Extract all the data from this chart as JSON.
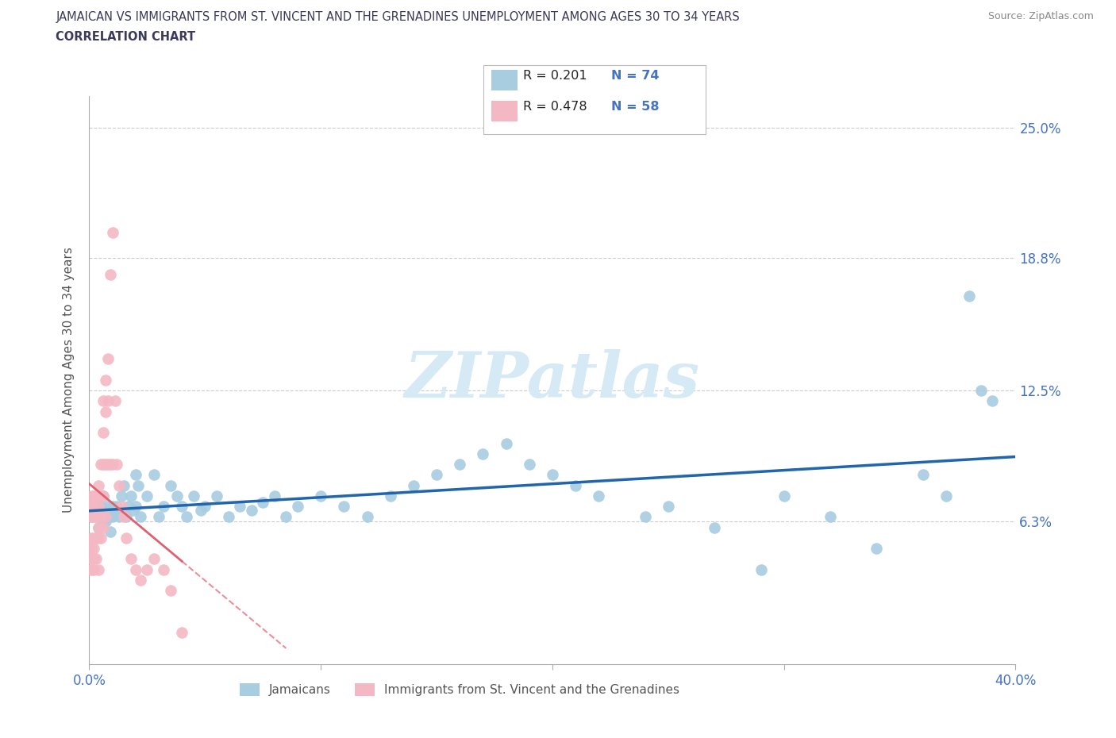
{
  "title_line1": "JAMAICAN VS IMMIGRANTS FROM ST. VINCENT AND THE GRENADINES UNEMPLOYMENT AMONG AGES 30 TO 34 YEARS",
  "title_line2": "CORRELATION CHART",
  "source_text": "Source: ZipAtlas.com",
  "ylabel": "Unemployment Among Ages 30 to 34 years",
  "xlim": [
    0.0,
    0.4
  ],
  "ylim": [
    -0.005,
    0.265
  ],
  "ytick_labels_right": [
    "6.3%",
    "12.5%",
    "18.8%",
    "25.0%"
  ],
  "ytick_vals_right": [
    0.063,
    0.125,
    0.188,
    0.25
  ],
  "legend_r1": "0.201",
  "legend_n1": "74",
  "legend_r2": "0.478",
  "legend_n2": "58",
  "color_blue": "#a8cce0",
  "color_pink": "#f4b8c4",
  "color_trend_blue": "#2166ac",
  "color_trend_pink": "#e06070",
  "watermark_color": "#d6eaf5",
  "title_color": "#3a3a5a",
  "axis_color": "#4472c4",
  "j_x": [
    0.001,
    0.002,
    0.003,
    0.003,
    0.004,
    0.004,
    0.005,
    0.005,
    0.006,
    0.006,
    0.007,
    0.007,
    0.008,
    0.009,
    0.009,
    0.01,
    0.01,
    0.011,
    0.012,
    0.013,
    0.014,
    0.015,
    0.016,
    0.017,
    0.018,
    0.019,
    0.02,
    0.02,
    0.021,
    0.022,
    0.025,
    0.028,
    0.03,
    0.032,
    0.035,
    0.038,
    0.04,
    0.042,
    0.045,
    0.048,
    0.05,
    0.055,
    0.06,
    0.065,
    0.07,
    0.075,
    0.08,
    0.085,
    0.09,
    0.1,
    0.11,
    0.12,
    0.13,
    0.14,
    0.15,
    0.16,
    0.17,
    0.18,
    0.19,
    0.2,
    0.21,
    0.22,
    0.24,
    0.25,
    0.27,
    0.29,
    0.3,
    0.32,
    0.34,
    0.36,
    0.37,
    0.38,
    0.385,
    0.39
  ],
  "j_y": [
    0.065,
    0.07,
    0.072,
    0.065,
    0.068,
    0.06,
    0.065,
    0.07,
    0.075,
    0.062,
    0.068,
    0.063,
    0.07,
    0.065,
    0.058,
    0.07,
    0.065,
    0.068,
    0.07,
    0.065,
    0.075,
    0.08,
    0.065,
    0.07,
    0.075,
    0.068,
    0.085,
    0.07,
    0.08,
    0.065,
    0.075,
    0.085,
    0.065,
    0.07,
    0.08,
    0.075,
    0.07,
    0.065,
    0.075,
    0.068,
    0.07,
    0.075,
    0.065,
    0.07,
    0.068,
    0.072,
    0.075,
    0.065,
    0.07,
    0.075,
    0.07,
    0.065,
    0.075,
    0.08,
    0.085,
    0.09,
    0.095,
    0.1,
    0.09,
    0.085,
    0.08,
    0.075,
    0.065,
    0.07,
    0.06,
    0.04,
    0.075,
    0.065,
    0.05,
    0.085,
    0.075,
    0.17,
    0.125,
    0.12
  ],
  "s_x": [
    0.001,
    0.001,
    0.001,
    0.001,
    0.001,
    0.001,
    0.001,
    0.002,
    0.002,
    0.002,
    0.002,
    0.002,
    0.002,
    0.002,
    0.003,
    0.003,
    0.003,
    0.003,
    0.003,
    0.004,
    0.004,
    0.004,
    0.004,
    0.004,
    0.005,
    0.005,
    0.005,
    0.005,
    0.006,
    0.006,
    0.006,
    0.006,
    0.006,
    0.007,
    0.007,
    0.007,
    0.007,
    0.008,
    0.008,
    0.008,
    0.009,
    0.009,
    0.01,
    0.01,
    0.011,
    0.012,
    0.013,
    0.014,
    0.015,
    0.016,
    0.018,
    0.02,
    0.022,
    0.025,
    0.028,
    0.032,
    0.035,
    0.04
  ],
  "s_y": [
    0.065,
    0.07,
    0.075,
    0.055,
    0.05,
    0.045,
    0.04,
    0.07,
    0.075,
    0.065,
    0.055,
    0.05,
    0.045,
    0.04,
    0.065,
    0.075,
    0.068,
    0.055,
    0.045,
    0.08,
    0.07,
    0.06,
    0.055,
    0.04,
    0.09,
    0.075,
    0.065,
    0.055,
    0.12,
    0.105,
    0.09,
    0.075,
    0.06,
    0.13,
    0.115,
    0.09,
    0.065,
    0.14,
    0.12,
    0.09,
    0.18,
    0.09,
    0.2,
    0.09,
    0.12,
    0.09,
    0.08,
    0.07,
    0.065,
    0.055,
    0.045,
    0.04,
    0.035,
    0.04,
    0.045,
    0.04,
    0.03,
    0.01
  ]
}
